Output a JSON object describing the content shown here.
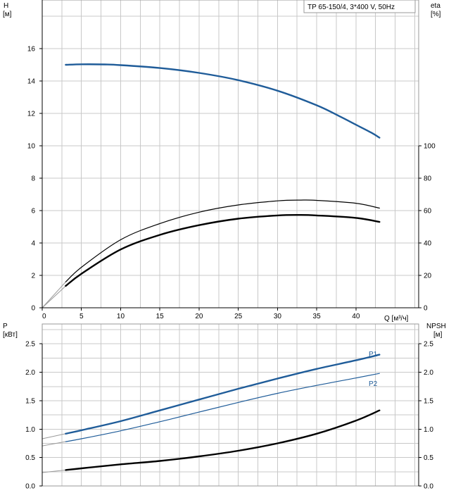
{
  "chart_data": [
    {
      "type": "line",
      "title": "TP 65-150/4, 3*400 V, 50Hz",
      "xlabel": "Q [м³/ч]",
      "ylabel_left_name": "H",
      "ylabel_left_unit": "[м]",
      "ylabel_right_name": "eta",
      "ylabel_right_unit": "[%]",
      "xlim": [
        0,
        48
      ],
      "ylim_left": [
        0,
        19
      ],
      "ylim_right": [
        0,
        190
      ],
      "x_ticks": [
        0,
        5,
        10,
        15,
        20,
        25,
        30,
        35,
        40
      ],
      "y_ticks_left": [
        0,
        2,
        4,
        6,
        8,
        10,
        12,
        14,
        16
      ],
      "y_ticks_right": [
        0,
        20,
        40,
        60,
        80,
        100
      ],
      "grid": true,
      "series": [
        {
          "axis": "left",
          "color": "#1f5c99",
          "width": 2.4,
          "x": [
            3,
            5,
            8,
            10,
            15,
            20,
            25,
            30,
            35,
            38,
            40,
            42,
            43
          ],
          "y": [
            15.0,
            15.03,
            15.02,
            14.98,
            14.8,
            14.5,
            14.05,
            13.4,
            12.5,
            11.8,
            11.3,
            10.8,
            10.5
          ]
        },
        {
          "axis": "right",
          "color": "#000000",
          "width": 1.2,
          "x": [
            3,
            5,
            10,
            15,
            20,
            25,
            30,
            33,
            35,
            40,
            43
          ],
          "y": [
            16,
            25,
            42,
            52,
            59,
            63.5,
            66,
            66.5,
            66.3,
            64.5,
            61.5
          ]
        },
        {
          "axis": "right",
          "color": "#000000",
          "width": 2.4,
          "x": [
            3,
            5,
            10,
            15,
            20,
            25,
            30,
            33,
            35,
            40,
            43
          ],
          "y": [
            13.5,
            21,
            36,
            45,
            51,
            55,
            57,
            57.3,
            57,
            55.5,
            53
          ]
        }
      ]
    },
    {
      "type": "line",
      "xlabel": "",
      "ylabel_left_name": "P",
      "ylabel_left_unit": "[кВт]",
      "ylabel_right_name": "NPSH",
      "ylabel_right_unit": "[м]",
      "xlim": [
        0,
        48
      ],
      "ylim": [
        0,
        2.85
      ],
      "y_ticks": [
        0.0,
        0.5,
        1.0,
        1.5,
        2.0,
        2.5
      ],
      "y_tick_labels": [
        "0.0",
        "0.5",
        "1.0",
        "1.5",
        "2.0",
        "2.5"
      ],
      "grid": true,
      "series": [
        {
          "name": "P1",
          "color": "#1f5c99",
          "width": 2.4,
          "x": [
            3,
            5,
            10,
            15,
            20,
            25,
            30,
            35,
            40,
            43
          ],
          "y": [
            0.92,
            0.98,
            1.14,
            1.33,
            1.52,
            1.71,
            1.89,
            2.06,
            2.21,
            2.31
          ]
        },
        {
          "name": "P2",
          "color": "#1f5c99",
          "width": 1.2,
          "x": [
            3,
            5,
            10,
            15,
            20,
            25,
            30,
            35,
            40,
            43
          ],
          "y": [
            0.78,
            0.83,
            0.97,
            1.13,
            1.3,
            1.47,
            1.63,
            1.77,
            1.9,
            1.98
          ]
        },
        {
          "color": "#000000",
          "width": 2.4,
          "x": [
            3,
            5,
            10,
            15,
            20,
            25,
            30,
            35,
            40,
            43
          ],
          "y": [
            0.28,
            0.31,
            0.38,
            0.44,
            0.52,
            0.62,
            0.75,
            0.92,
            1.15,
            1.33
          ]
        }
      ]
    }
  ]
}
